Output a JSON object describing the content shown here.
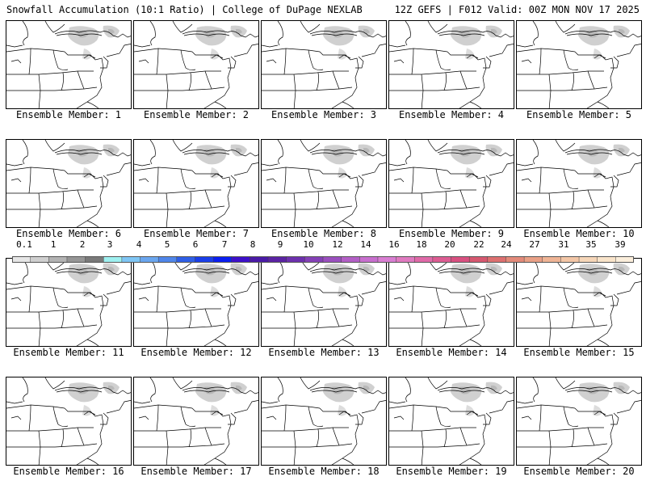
{
  "header": {
    "title_left": "Snowfall Accumulation (10:1 Ratio) | College of DuPage NEXLAB",
    "title_right": "12Z GEFS | F012 Valid: 00Z MON NOV 17 2025"
  },
  "panels": [
    {
      "label": "Ensemble Member: 1"
    },
    {
      "label": "Ensemble Member: 2"
    },
    {
      "label": "Ensemble Member: 3"
    },
    {
      "label": "Ensemble Member: 4"
    },
    {
      "label": "Ensemble Member: 5"
    },
    {
      "label": "Ensemble Member: 6"
    },
    {
      "label": "Ensemble Member: 7"
    },
    {
      "label": "Ensemble Member: 8"
    },
    {
      "label": "Ensemble Member: 9"
    },
    {
      "label": "Ensemble Member: 10"
    },
    {
      "label": "Ensemble Member: 11"
    },
    {
      "label": "Ensemble Member: 12"
    },
    {
      "label": "Ensemble Member: 13"
    },
    {
      "label": "Ensemble Member: 14"
    },
    {
      "label": "Ensemble Member: 15"
    },
    {
      "label": "Ensemble Member: 16"
    },
    {
      "label": "Ensemble Member: 17"
    },
    {
      "label": "Ensemble Member: 18"
    },
    {
      "label": "Ensemble Member: 19"
    },
    {
      "label": "Ensemble Member: 20"
    }
  ],
  "colorbar": {
    "labels": [
      "0.1",
      "1",
      "2",
      "3",
      "4",
      "5",
      "6",
      "7",
      "8",
      "9",
      "10",
      "12",
      "14",
      "16",
      "18",
      "20",
      "22",
      "24",
      "27",
      "31",
      "35",
      "39"
    ],
    "colors": [
      "#e6e6e6",
      "#cfcfcf",
      "#b3b3b3",
      "#969696",
      "#7a7a7a",
      "#9ef0f0",
      "#7fc6f5",
      "#6aa6ef",
      "#4f86ea",
      "#2f5fe6",
      "#1a3ee8",
      "#0b1ef0",
      "#3d10c9",
      "#4a1aa6",
      "#5b23a3",
      "#6d30ad",
      "#8440b6",
      "#9a4fbe",
      "#b35fc6",
      "#c86fce",
      "#d97ed2",
      "#e07ac0",
      "#e06aa8",
      "#dc5c92",
      "#d85080",
      "#d65870",
      "#dd7070",
      "#e38a7a",
      "#e9a086",
      "#efb495",
      "#f3c6a6",
      "#f6d6b8",
      "#f9e4ca",
      "#fbeedb"
    ]
  }
}
